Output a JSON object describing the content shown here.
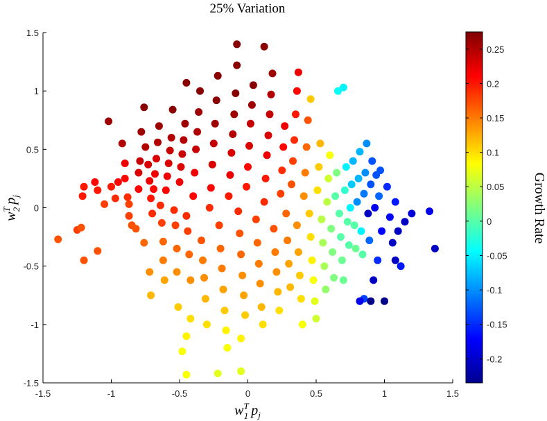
{
  "chart_data": {
    "type": "scatter",
    "title": "25% Variation",
    "xlabel": "w_1^T p_j",
    "ylabel": "w_2^T p_j",
    "xlim": [
      -1.5,
      1.5
    ],
    "ylim": [
      -1.5,
      1.5
    ],
    "xticks": [
      "-1.5",
      "-1",
      "-0.5",
      "0",
      "0.5",
      "1",
      "1.5"
    ],
    "yticks": [
      "-1.5",
      "-1",
      "-0.5",
      "0",
      "0.5",
      "1",
      "1.5"
    ],
    "grid": false,
    "colorbar": {
      "label": "Growth Rate",
      "range": [
        -0.235,
        0.275
      ],
      "colormap": "jet",
      "ticks": [
        "-0.2",
        "-0.15",
        "-0.1",
        "-0.05",
        "0",
        "0.05",
        "0.1",
        "0.15",
        "0.2",
        "0.25"
      ]
    },
    "points": [
      [
        -1.39,
        -0.27
      ],
      [
        -1.25,
        -0.19
      ],
      [
        -1.2,
        -0.45
      ],
      [
        -1.22,
        -0.17
      ],
      [
        -1.1,
        -0.37
      ],
      [
        -1.21,
        0.1
      ],
      [
        -1.2,
        0.18
      ],
      [
        -1.1,
        0.15
      ],
      [
        -1.12,
        0.22
      ],
      [
        -1.05,
        0.03
      ],
      [
        -1.02,
        0.74
      ],
      [
        -1.0,
        0.18
      ],
      [
        -0.97,
        0.08
      ],
      [
        -0.95,
        0.22
      ],
      [
        -0.92,
        0.55
      ],
      [
        -0.9,
        0.38
      ],
      [
        -0.9,
        0.25
      ],
      [
        -0.88,
        0.09
      ],
      [
        -0.87,
        0.03
      ],
      [
        -0.87,
        -0.07
      ],
      [
        -0.85,
        -0.15
      ],
      [
        -0.82,
        -0.18
      ],
      [
        -0.8,
        0.16
      ],
      [
        -0.8,
        0.3
      ],
      [
        -0.79,
        0.4
      ],
      [
        -0.78,
        0.65
      ],
      [
        -0.76,
        0.86
      ],
      [
        -0.76,
        -0.3
      ],
      [
        -0.75,
        0.52
      ],
      [
        -0.73,
        0.37
      ],
      [
        -0.72,
        0.23
      ],
      [
        -0.71,
        0.08
      ],
      [
        -0.7,
        -0.05
      ],
      [
        -0.72,
        -0.55
      ],
      [
        -0.71,
        -0.75
      ],
      [
        -0.69,
        0.16
      ],
      [
        -0.68,
        0.29
      ],
      [
        -0.67,
        0.42
      ],
      [
        -0.66,
        0.56
      ],
      [
        -0.65,
        0.7
      ],
      [
        -0.64,
        0.02
      ],
      [
        -0.63,
        -0.13
      ],
      [
        -0.62,
        -0.29
      ],
      [
        -0.62,
        -0.45
      ],
      [
        -0.61,
        -0.62
      ],
      [
        -0.6,
        0.15
      ],
      [
        -0.59,
        0.27
      ],
      [
        -0.58,
        0.38
      ],
      [
        -0.57,
        0.49
      ],
      [
        -0.56,
        0.6
      ],
      [
        -0.55,
        0.84
      ],
      [
        -0.54,
        -0.02
      ],
      [
        -0.53,
        -0.15
      ],
      [
        -0.52,
        -0.35
      ],
      [
        -0.52,
        -0.55
      ],
      [
        -0.51,
        -0.85
      ],
      [
        -0.5,
        0.22
      ],
      [
        -0.49,
        0.35
      ],
      [
        -0.48,
        0.46
      ],
      [
        -0.47,
        0.58
      ],
      [
        -0.46,
        0.72
      ],
      [
        -0.45,
        1.07
      ],
      [
        -0.45,
        -0.07
      ],
      [
        -0.44,
        -0.2
      ],
      [
        -0.43,
        -0.4
      ],
      [
        -0.42,
        -0.62
      ],
      [
        -0.42,
        -0.95
      ],
      [
        -0.45,
        -1.1
      ],
      [
        -0.48,
        -1.23
      ],
      [
        -0.45,
        -1.43
      ],
      [
        -0.4,
        0.1
      ],
      [
        -0.39,
        0.3
      ],
      [
        -0.38,
        0.5
      ],
      [
        -0.37,
        0.65
      ],
      [
        -0.36,
        0.82
      ],
      [
        -0.35,
        1.0
      ],
      [
        -0.34,
        -0.28
      ],
      [
        -0.33,
        -0.45
      ],
      [
        -0.32,
        -0.6
      ],
      [
        -0.31,
        -0.78
      ],
      [
        -0.3,
        -1.0
      ],
      [
        -0.28,
        0.0
      ],
      [
        -0.27,
        0.17
      ],
      [
        -0.26,
        0.37
      ],
      [
        -0.25,
        0.55
      ],
      [
        -0.24,
        0.72
      ],
      [
        -0.23,
        0.92
      ],
      [
        -0.22,
        1.13
      ],
      [
        -0.21,
        -0.15
      ],
      [
        -0.2,
        -0.35
      ],
      [
        -0.19,
        -0.52
      ],
      [
        -0.18,
        -0.7
      ],
      [
        -0.17,
        -0.88
      ],
      [
        -0.16,
        -1.05
      ],
      [
        -0.15,
        -1.2
      ],
      [
        -0.22,
        -1.42
      ],
      [
        -0.14,
        0.1
      ],
      [
        -0.13,
        0.28
      ],
      [
        -0.12,
        0.47
      ],
      [
        -0.11,
        0.63
      ],
      [
        -0.1,
        0.8
      ],
      [
        -0.09,
        0.98
      ],
      [
        -0.08,
        1.22
      ],
      [
        -0.08,
        1.4
      ],
      [
        -0.07,
        -0.03
      ],
      [
        -0.06,
        -0.22
      ],
      [
        -0.05,
        -0.4
      ],
      [
        -0.04,
        -0.58
      ],
      [
        -0.03,
        -0.75
      ],
      [
        -0.02,
        -0.92
      ],
      [
        -0.05,
        -1.12
      ],
      [
        -0.05,
        -1.4
      ],
      [
        -0.01,
        0.18
      ],
      [
        0.0,
        0.35
      ],
      [
        0.01,
        0.53
      ],
      [
        0.02,
        0.72
      ],
      [
        0.03,
        0.88
      ],
      [
        0.04,
        1.05
      ],
      [
        0.06,
        -0.1
      ],
      [
        0.07,
        -0.3
      ],
      [
        0.08,
        -0.48
      ],
      [
        0.09,
        -0.65
      ],
      [
        0.1,
        -0.85
      ],
      [
        0.11,
        -1.0
      ],
      [
        0.12,
        0.05
      ],
      [
        0.13,
        0.25
      ],
      [
        0.14,
        0.45
      ],
      [
        0.15,
        0.62
      ],
      [
        0.16,
        0.8
      ],
      [
        0.17,
        0.97
      ],
      [
        0.18,
        1.15
      ],
      [
        0.12,
        1.38
      ],
      [
        0.19,
        -0.18
      ],
      [
        0.2,
        -0.38
      ],
      [
        0.21,
        -0.55
      ],
      [
        0.22,
        -0.72
      ],
      [
        0.23,
        -0.88
      ],
      [
        0.24,
        0.12
      ],
      [
        0.25,
        0.32
      ],
      [
        0.26,
        0.52
      ],
      [
        0.27,
        0.7
      ],
      [
        0.28,
        -0.05
      ],
      [
        0.29,
        -0.28
      ],
      [
        0.3,
        -0.48
      ],
      [
        0.31,
        -0.68
      ],
      [
        0.32,
        0.2
      ],
      [
        0.33,
        0.4
      ],
      [
        0.34,
        0.58
      ],
      [
        0.35,
        0.8
      ],
      [
        0.36,
        1.0
      ],
      [
        0.37,
        1.16
      ],
      [
        0.36,
        -0.15
      ],
      [
        0.37,
        -0.38
      ],
      [
        0.38,
        -0.58
      ],
      [
        0.39,
        -0.78
      ],
      [
        0.4,
        -1.0
      ],
      [
        0.41,
        0.1
      ],
      [
        0.42,
        0.3
      ],
      [
        0.43,
        0.52
      ],
      [
        0.44,
        0.75
      ],
      [
        0.45,
        -0.05
      ],
      [
        0.46,
        -0.25
      ],
      [
        0.47,
        -0.45
      ],
      [
        0.48,
        -0.62
      ],
      [
        0.49,
        -0.8
      ],
      [
        0.5,
        -0.95
      ],
      [
        0.51,
        0.15
      ],
      [
        0.52,
        0.35
      ],
      [
        0.53,
        0.55
      ],
      [
        0.46,
        0.93
      ],
      [
        0.54,
        -0.1
      ],
      [
        0.55,
        -0.3
      ],
      [
        0.56,
        -0.5
      ],
      [
        0.57,
        -0.7
      ],
      [
        0.58,
        0.05
      ],
      [
        0.59,
        0.25
      ],
      [
        0.6,
        0.45
      ],
      [
        0.61,
        -0.18
      ],
      [
        0.62,
        -0.38
      ],
      [
        0.63,
        -0.6
      ],
      [
        0.64,
        0.1
      ],
      [
        0.65,
        0.3
      ],
      [
        0.66,
        1.0
      ],
      [
        0.7,
        1.03
      ],
      [
        0.67,
        -0.05
      ],
      [
        0.68,
        -0.25
      ],
      [
        0.69,
        -0.45
      ],
      [
        0.7,
        -0.62
      ],
      [
        0.71,
        0.15
      ],
      [
        0.72,
        0.35
      ],
      [
        0.73,
        -0.12
      ],
      [
        0.74,
        -0.32
      ],
      [
        0.75,
        0.0
      ],
      [
        0.76,
        0.2
      ],
      [
        0.77,
        0.4
      ],
      [
        0.78,
        -0.15
      ],
      [
        0.79,
        -0.35
      ],
      [
        0.8,
        0.05
      ],
      [
        0.81,
        0.25
      ],
      [
        0.82,
        0.48
      ],
      [
        0.83,
        -0.2
      ],
      [
        0.84,
        -0.4
      ],
      [
        0.85,
        -0.78
      ],
      [
        0.85,
        0.12
      ],
      [
        0.86,
        0.3
      ],
      [
        0.87,
        0.55
      ],
      [
        0.88,
        -0.05
      ],
      [
        0.89,
        -0.28
      ],
      [
        0.9,
        0.2
      ],
      [
        0.91,
        0.4
      ],
      [
        0.92,
        -0.62
      ],
      [
        0.93,
        0.0
      ],
      [
        0.94,
        0.28
      ],
      [
        0.95,
        -0.45
      ],
      [
        0.96,
        0.1
      ],
      [
        0.97,
        0.32
      ],
      [
        0.98,
        -0.2
      ],
      [
        1.0,
        -0.8
      ],
      [
        1.02,
        0.18
      ],
      [
        1.04,
        -0.08
      ],
      [
        1.06,
        -0.3
      ],
      [
        1.08,
        0.05
      ],
      [
        1.1,
        -0.2
      ],
      [
        1.12,
        -0.5
      ],
      [
        1.15,
        -0.12
      ],
      [
        1.2,
        -0.05
      ],
      [
        1.33,
        -0.03
      ],
      [
        1.37,
        -0.35
      ],
      [
        0.82,
        -0.8
      ],
      [
        0.9,
        -0.8
      ],
      [
        1.08,
        -0.45
      ]
    ],
    "growth_rates": [
      0.17,
      0.18,
      0.17,
      0.17,
      0.17,
      0.2,
      0.2,
      0.2,
      0.21,
      0.18,
      0.26,
      0.2,
      0.19,
      0.21,
      0.25,
      0.22,
      0.21,
      0.19,
      0.18,
      0.18,
      0.17,
      0.17,
      0.21,
      0.23,
      0.24,
      0.26,
      0.27,
      0.16,
      0.25,
      0.23,
      0.22,
      0.2,
      0.19,
      0.14,
      0.12,
      0.21,
      0.22,
      0.23,
      0.25,
      0.26,
      0.19,
      0.18,
      0.16,
      0.15,
      0.13,
      0.21,
      0.22,
      0.23,
      0.24,
      0.25,
      0.27,
      0.19,
      0.18,
      0.16,
      0.14,
      0.11,
      0.22,
      0.23,
      0.24,
      0.25,
      0.26,
      0.27,
      0.19,
      0.18,
      0.16,
      0.14,
      0.1,
      0.09,
      0.08,
      0.08,
      0.21,
      0.22,
      0.24,
      0.25,
      0.26,
      0.27,
      0.17,
      0.15,
      0.14,
      0.12,
      0.1,
      0.19,
      0.21,
      0.23,
      0.24,
      0.26,
      0.27,
      0.27,
      0.18,
      0.16,
      0.15,
      0.13,
      0.11,
      0.09,
      0.08,
      0.07,
      0.2,
      0.22,
      0.23,
      0.25,
      0.26,
      0.27,
      0.27,
      0.27,
      0.19,
      0.17,
      0.16,
      0.14,
      0.13,
      0.11,
      0.09,
      0.07,
      0.2,
      0.21,
      0.23,
      0.24,
      0.26,
      0.27,
      0.18,
      0.16,
      0.15,
      0.14,
      0.12,
      0.1,
      0.19,
      0.2,
      0.22,
      0.23,
      0.24,
      0.25,
      0.26,
      0.27,
      0.17,
      0.15,
      0.14,
      0.12,
      0.1,
      0.18,
      0.19,
      0.21,
      0.22,
      0.16,
      0.15,
      0.13,
      0.12,
      0.17,
      0.18,
      0.19,
      0.2,
      0.21,
      0.22,
      0.14,
      0.13,
      0.11,
      0.1,
      0.08,
      0.14,
      0.15,
      0.16,
      0.17,
      0.11,
      0.1,
      0.09,
      0.08,
      0.07,
      0.06,
      0.1,
      0.11,
      0.12,
      0.11,
      0.05,
      0.04,
      0.04,
      0.03,
      0.05,
      0.06,
      0.08,
      0.02,
      0.02,
      0.02,
      0.0,
      0.02,
      -0.04,
      -0.05,
      0.0,
      0.0,
      0.01,
      0.01,
      -0.02,
      -0.05,
      0.0,
      0.0,
      -0.05,
      -0.07,
      -0.08,
      0.0,
      0.01,
      -0.1,
      -0.08,
      -0.08,
      -0.05,
      0.0,
      -0.14,
      -0.11,
      -0.1,
      -0.1,
      -0.2,
      -0.12,
      -0.13,
      -0.13,
      -0.2,
      -0.18,
      -0.13,
      -0.15,
      -0.12,
      -0.13,
      -0.17,
      -0.23,
      -0.15,
      -0.17,
      -0.2,
      -0.16,
      -0.2,
      -0.16,
      -0.2,
      -0.19,
      -0.18,
      -0.2,
      -0.18,
      -0.23,
      -0.2
    ]
  }
}
